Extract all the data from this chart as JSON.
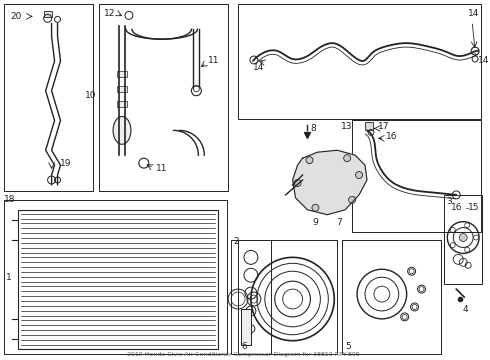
{
  "title": "2019 Honda Civic Air Conditioner Compressor Diagram for 38810-RPY-E05",
  "bg_color": "#ffffff",
  "lc": "#222222",
  "fig_width": 4.9,
  "fig_height": 3.6,
  "dpi": 100
}
